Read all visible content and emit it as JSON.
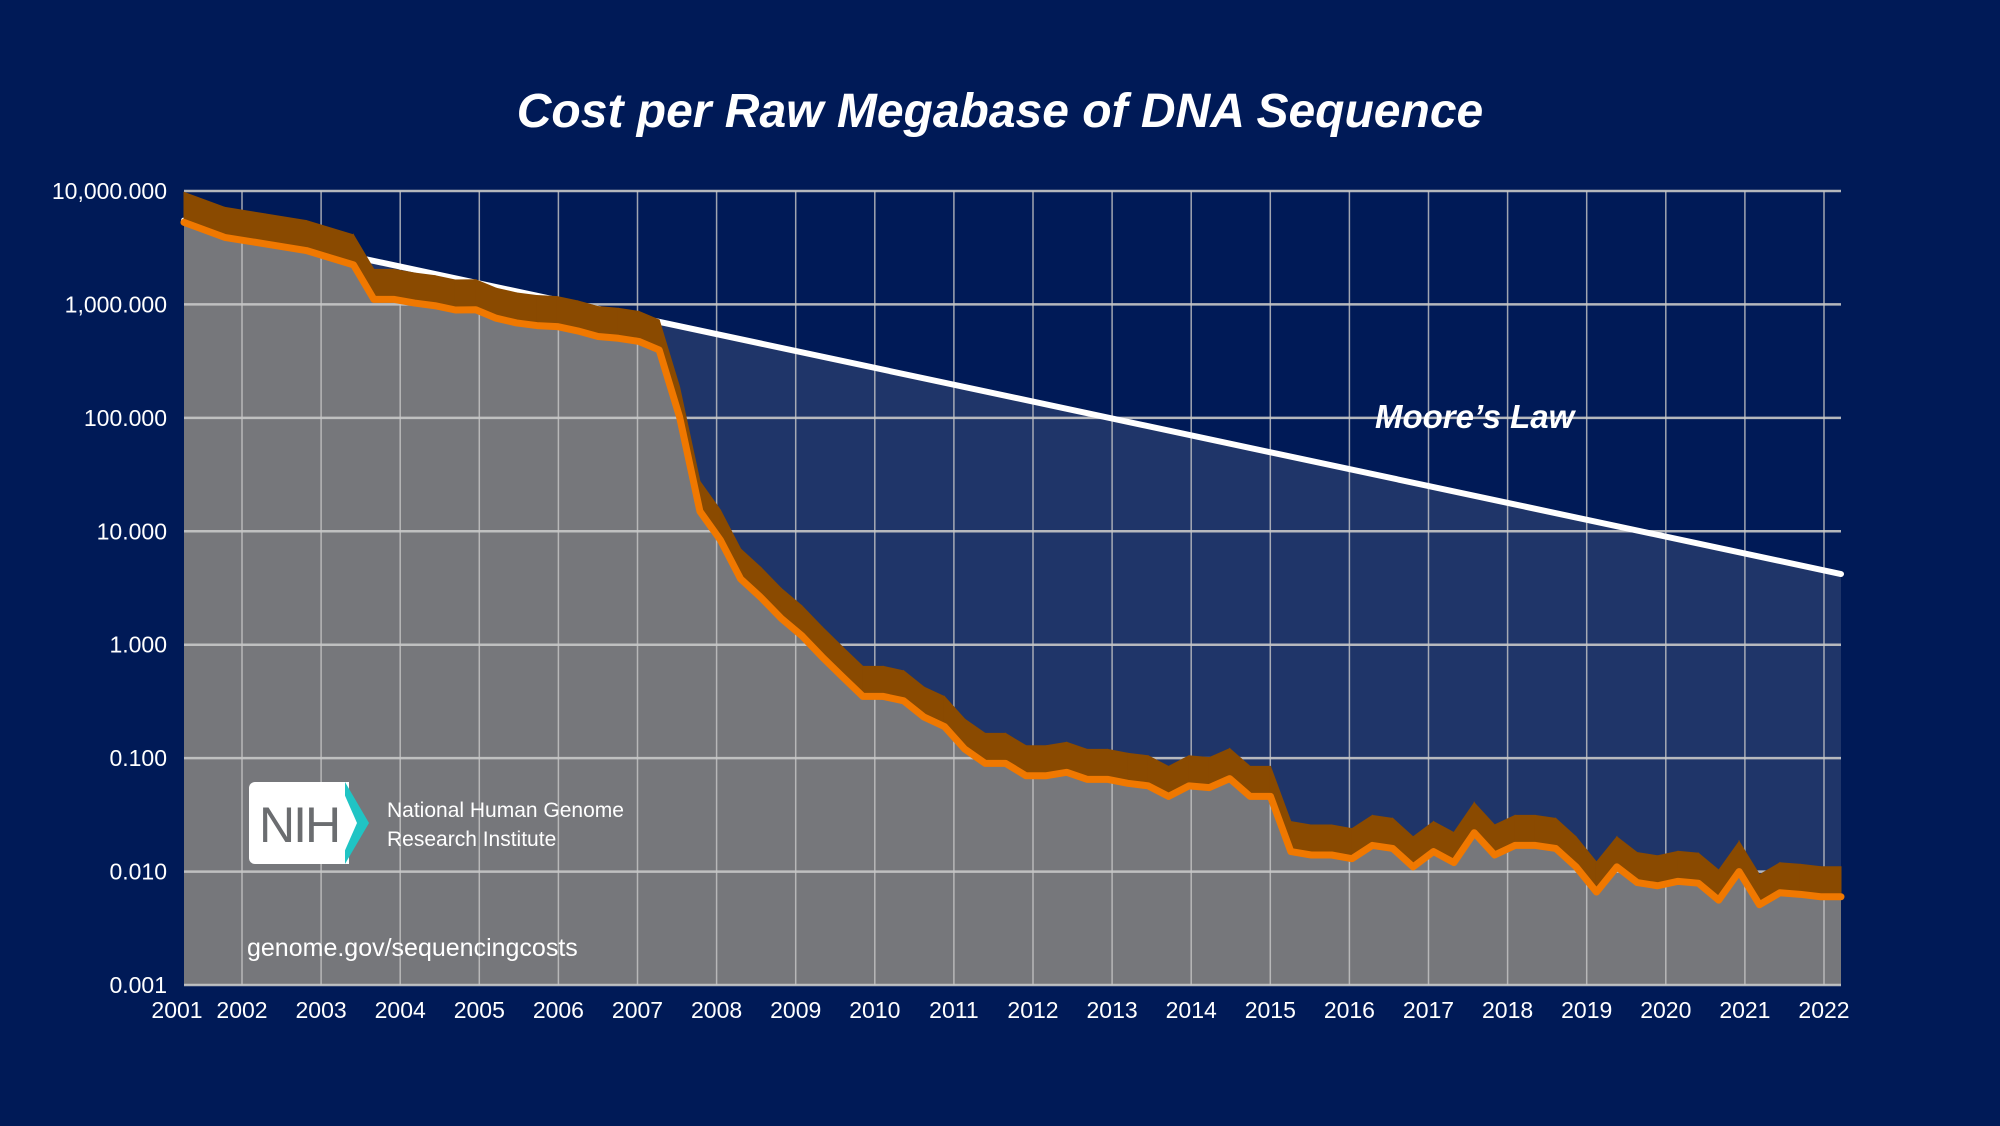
{
  "chart_data": {
    "type": "line",
    "title": "Cost per Raw Megabase of DNA Sequence",
    "xlabel": "",
    "ylabel": "",
    "yscale": "log",
    "ylim": [
      0.001,
      10000
    ],
    "xlim": [
      2001.67,
      2022.0
    ],
    "y_ticks": [
      "10,000.000",
      "1,000.000",
      "100.000",
      "10.000",
      "1.000",
      "0.100",
      "0.010",
      "0.001"
    ],
    "y_tick_values": [
      10000,
      1000,
      100,
      10,
      1,
      0.1,
      0.01,
      0.001
    ],
    "x_ticks": [
      "2001",
      "2002",
      "2003",
      "2004",
      "2005",
      "2006",
      "2007",
      "2008",
      "2009",
      "2010",
      "2011",
      "2012",
      "2013",
      "2014",
      "2015",
      "2016",
      "2017",
      "2018",
      "2019",
      "2020",
      "2021",
      "2022"
    ],
    "grid": true,
    "series": [
      {
        "name": "Cost per Raw Megabase",
        "color": "#f07800",
        "x": [
          2001.67,
          2002.17,
          2002.67,
          2003.17,
          2003.75,
          2004.0,
          2004.25,
          2004.5,
          2004.75,
          2005.0,
          2005.25,
          2005.5,
          2005.75,
          2006.0,
          2006.25,
          2006.5,
          2006.75,
          2007.0,
          2007.25,
          2007.5,
          2007.75,
          2008.0,
          2008.25,
          2008.5,
          2008.75,
          2009.0,
          2009.25,
          2009.5,
          2009.75,
          2010.0,
          2010.25,
          2010.5,
          2010.75,
          2011.0,
          2011.25,
          2011.5,
          2011.75,
          2012.0,
          2012.25,
          2012.5,
          2012.75,
          2013.0,
          2013.25,
          2013.5,
          2013.75,
          2014.0,
          2014.25,
          2014.5,
          2014.75,
          2015.0,
          2015.25,
          2015.5,
          2015.75,
          2016.0,
          2016.25,
          2016.5,
          2016.75,
          2017.0,
          2017.25,
          2017.5,
          2017.75,
          2018.0,
          2018.25,
          2018.5,
          2018.75,
          2019.0,
          2019.25,
          2019.5,
          2019.75,
          2020.0,
          2020.25,
          2020.5,
          2020.75,
          2021.0,
          2021.25,
          2021.5,
          2021.75,
          2022.0
        ],
        "values": [
          5292,
          3899,
          3413,
          2987,
          2231,
          1108,
          1107,
          1028,
          974,
          893,
          898,
          756,
          687,
          651,
          638,
          584,
          521,
          503,
          472,
          397,
          102,
          15,
          8.4,
          3.8,
          2.6,
          1.7,
          1.2,
          0.78,
          0.52,
          0.35,
          0.35,
          0.32,
          0.23,
          0.19,
          0.12,
          0.09,
          0.09,
          0.07,
          0.07,
          0.075,
          0.065,
          0.065,
          0.06,
          0.057,
          0.046,
          0.057,
          0.055,
          0.066,
          0.046,
          0.046,
          0.015,
          0.014,
          0.014,
          0.013,
          0.017,
          0.016,
          0.011,
          0.015,
          0.012,
          0.022,
          0.014,
          0.017,
          0.017,
          0.016,
          0.011,
          0.0066,
          0.011,
          0.008,
          0.0075,
          0.0082,
          0.0079,
          0.0056,
          0.01,
          0.0051,
          0.0065,
          0.0063,
          0.006,
          0.006
        ]
      },
      {
        "name": "Moore's Law",
        "color": "#ffffff",
        "x": [
          2001.67,
          2022.0
        ],
        "values": [
          5500,
          4.2
        ]
      }
    ],
    "annotations": [
      "Moore’s Law"
    ]
  },
  "logo": {
    "text": "NIH",
    "org_line1": "National Human Genome",
    "org_line2": "Research Institute"
  },
  "url": "genome.gov/sequencingcosts",
  "colors": {
    "background": "#001a57",
    "moore_fill": "#1f3569",
    "cost_fill": "#76777b",
    "band": "#8a4a00",
    "line": "#f07800"
  }
}
